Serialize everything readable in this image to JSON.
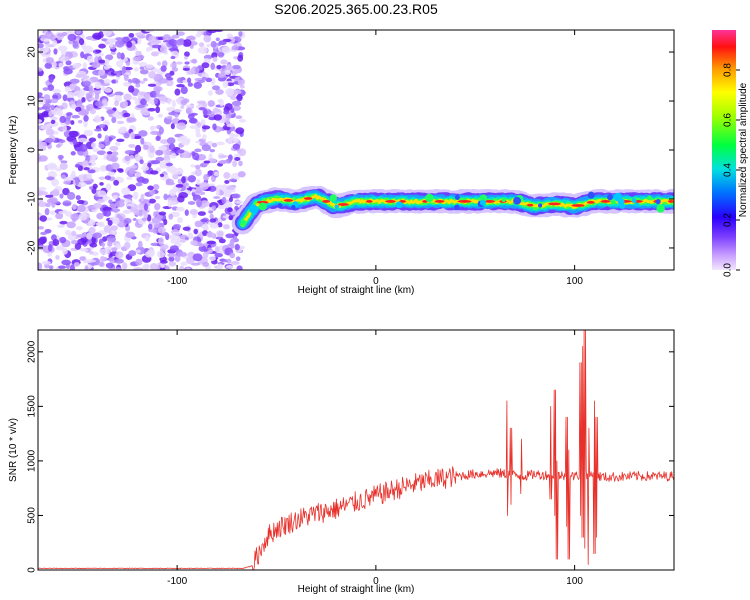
{
  "title": "S206.2025.365.00.23.R05",
  "chart_data": [
    {
      "type": "heatmap",
      "xlabel": "Height of straight line (km)",
      "ylabel": "Frequency (Hz)",
      "xlim": [
        -170,
        150
      ],
      "ylim": [
        -24.5,
        24.5
      ],
      "xticks": [
        -100,
        0,
        100
      ],
      "yticks": [
        -20,
        -10,
        0,
        10,
        20
      ],
      "grid": false,
      "noise_region_x": [
        -170,
        -67
      ],
      "signal_start_x": -67,
      "signal_end_x": 150,
      "signal_frequency": [
        {
          "x": -67,
          "y": -15
        },
        {
          "x": -60,
          "y": -11
        },
        {
          "x": -50,
          "y": -10
        },
        {
          "x": -40,
          "y": -10.5
        },
        {
          "x": -30,
          "y": -9.5
        },
        {
          "x": -20,
          "y": -11.5
        },
        {
          "x": -10,
          "y": -10.5
        },
        {
          "x": 0,
          "y": -10.5
        },
        {
          "x": 20,
          "y": -10.5
        },
        {
          "x": 40,
          "y": -10.5
        },
        {
          "x": 55,
          "y": -10.5
        },
        {
          "x": 60,
          "y": -10.5
        },
        {
          "x": 70,
          "y": -10.5
        },
        {
          "x": 80,
          "y": -11.5
        },
        {
          "x": 90,
          "y": -11
        },
        {
          "x": 100,
          "y": -11.5
        },
        {
          "x": 110,
          "y": -10.5
        },
        {
          "x": 130,
          "y": -10.5
        },
        {
          "x": 150,
          "y": -10.5
        }
      ],
      "colorbar": {
        "label": "Normalized spectral amplitude",
        "range": [
          0,
          0.96
        ],
        "ticks": [
          0.0,
          0.2,
          0.4,
          0.6,
          0.8
        ]
      }
    },
    {
      "type": "line",
      "xlabel": "Height of straight line (km)",
      "ylabel": "SNR (10 * v/v)",
      "xlim": [
        -170,
        150
      ],
      "ylim": [
        0,
        2200
      ],
      "xticks": [
        -100,
        0,
        100
      ],
      "yticks": [
        0,
        500,
        1000,
        1500,
        2000
      ],
      "grid": false,
      "line_color": "#e8302a",
      "envelope": {
        "x": [
          -170,
          -67,
          -62,
          -55,
          -50,
          -40,
          -30,
          -20,
          -10,
          0,
          10,
          20,
          30,
          40,
          50,
          60,
          65,
          70,
          75,
          80,
          85,
          90,
          95,
          100,
          105,
          110,
          115,
          130,
          150
        ],
        "y": [
          15,
          15,
          40,
          300,
          380,
          460,
          520,
          560,
          620,
          680,
          740,
          790,
          830,
          860,
          880,
          890,
          880,
          870,
          860,
          880,
          870,
          880,
          860,
          860,
          880,
          870,
          850,
          860,
          860
        ]
      },
      "spikes": [
        {
          "x": 66,
          "lo": 500,
          "hi": 1550
        },
        {
          "x": 68,
          "lo": 600,
          "hi": 1300
        },
        {
          "x": 73,
          "lo": 700,
          "hi": 1200
        },
        {
          "x": 88,
          "lo": 650,
          "hi": 1500
        },
        {
          "x": 90,
          "lo": 500,
          "hi": 1650
        },
        {
          "x": 91,
          "lo": 100,
          "hi": 1000
        },
        {
          "x": 96,
          "lo": 400,
          "hi": 1400
        },
        {
          "x": 97,
          "lo": 100,
          "hi": 1100
        },
        {
          "x": 103,
          "lo": 500,
          "hi": 1900
        },
        {
          "x": 104,
          "lo": 300,
          "hi": 2050
        },
        {
          "x": 105,
          "lo": 200,
          "hi": 2200
        },
        {
          "x": 107,
          "lo": 50,
          "hi": 1300
        },
        {
          "x": 110,
          "lo": 150,
          "hi": 1550
        },
        {
          "x": 111,
          "lo": 300,
          "hi": 1400
        }
      ]
    }
  ]
}
